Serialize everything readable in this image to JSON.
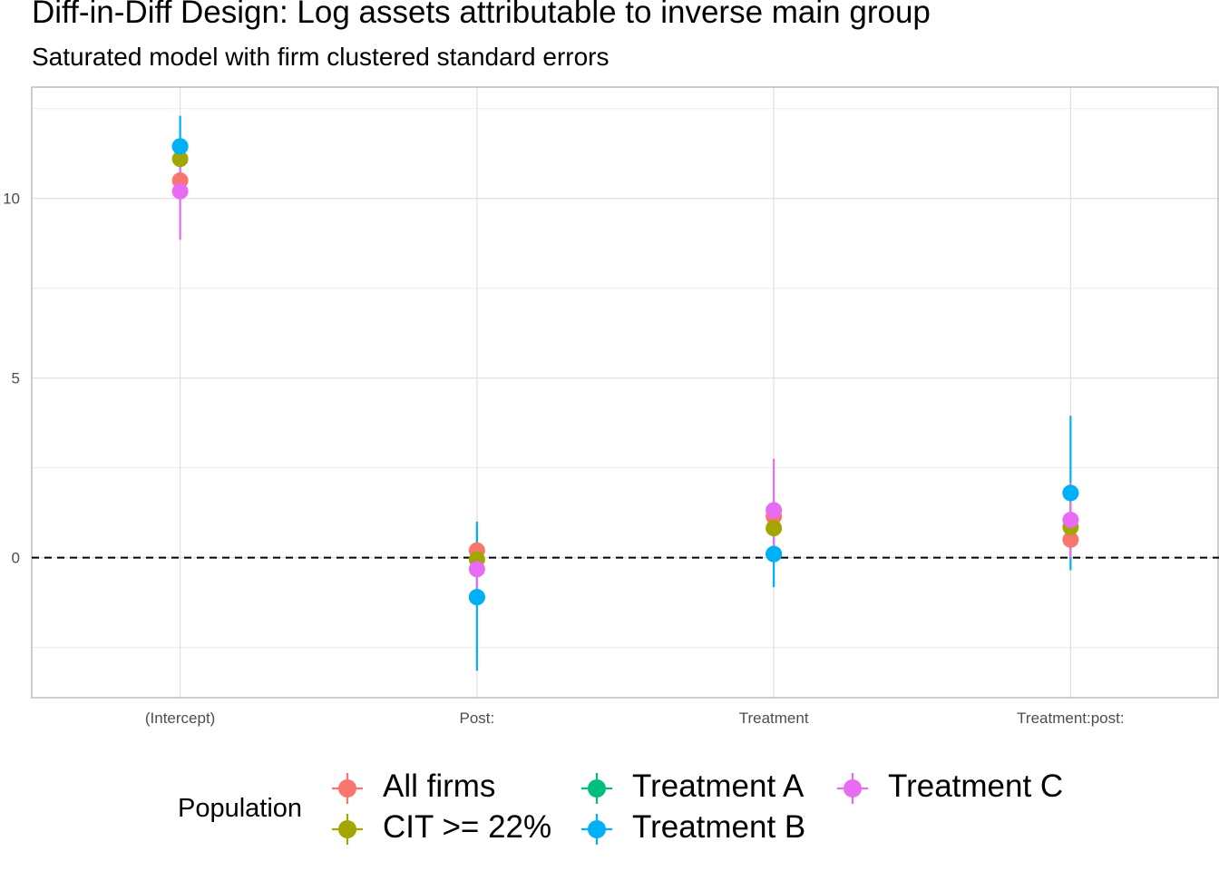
{
  "title": "Diff-in-Diff Design: Log assets attributable to inverse main group",
  "subtitle": "Saturated model with firm clustered standard errors",
  "chart_data": {
    "type": "scatter",
    "subtype": "point-range",
    "categories": [
      "(Intercept)",
      "Post:",
      "Treatment",
      "Treatment:post:"
    ],
    "ylim": [
      -3.9,
      13.1
    ],
    "y_ticks": [
      0,
      5,
      10
    ],
    "grid": true,
    "reference_line": {
      "y": 0,
      "style": "dashed"
    },
    "legend": {
      "title": "Population",
      "position": "bottom"
    },
    "series": [
      {
        "name": "All firms",
        "color": "#F8766D",
        "values": [
          10.5,
          0.2,
          1.15,
          0.5
        ],
        "lower": [
          10.5,
          0.2,
          1.15,
          0.5
        ],
        "upper": [
          10.5,
          0.2,
          1.15,
          0.5
        ]
      },
      {
        "name": "CIT >= 22%",
        "color": "#A3A500",
        "values": [
          11.1,
          -0.05,
          0.82,
          0.85
        ],
        "lower": [
          11.1,
          -0.75,
          0.82,
          0.0
        ],
        "upper": [
          11.1,
          0.85,
          0.82,
          1.75
        ]
      },
      {
        "name": "Treatment A",
        "color": "#00BF7D",
        "values": [
          11.45,
          -1.1,
          0.1,
          1.8
        ],
        "lower": [
          11.45,
          -1.1,
          0.1,
          1.8
        ],
        "upper": [
          11.45,
          -1.1,
          0.1,
          1.8
        ]
      },
      {
        "name": "Treatment B",
        "color": "#00B0F6",
        "values": [
          11.45,
          -1.1,
          0.1,
          1.8
        ],
        "lower": [
          10.6,
          -3.15,
          -0.82,
          -0.35
        ],
        "upper": [
          12.3,
          1.0,
          1.0,
          3.95
        ]
      },
      {
        "name": "Treatment C",
        "color": "#E76BF3",
        "values": [
          10.2,
          -0.32,
          1.32,
          1.05
        ],
        "lower": [
          8.85,
          -1.0,
          -0.1,
          0.0
        ],
        "upper": [
          11.5,
          0.35,
          2.75,
          2.1
        ]
      }
    ]
  }
}
